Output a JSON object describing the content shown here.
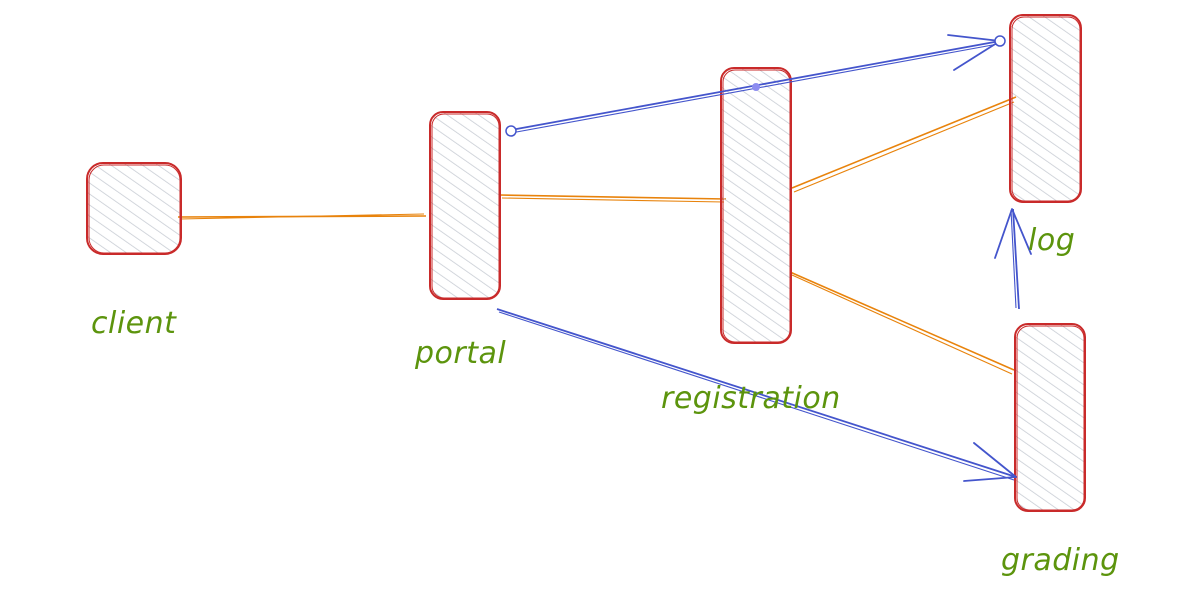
{
  "diagram": {
    "nodes": [
      {
        "id": "client",
        "label": "client"
      },
      {
        "id": "portal",
        "label": "portal"
      },
      {
        "id": "registration",
        "label": "registration"
      },
      {
        "id": "log",
        "label": "log"
      },
      {
        "id": "grading",
        "label": "grading"
      }
    ],
    "edges": [
      {
        "from": "client",
        "to": "portal",
        "kind": "line",
        "color": "#e8830c"
      },
      {
        "from": "portal",
        "to": "registration",
        "kind": "line",
        "color": "#e8830c"
      },
      {
        "from": "registration",
        "to": "log",
        "kind": "line",
        "color": "#e8830c"
      },
      {
        "from": "registration",
        "to": "grading",
        "kind": "line",
        "color": "#e8830c"
      },
      {
        "from": "portal",
        "to": "log",
        "kind": "arrow",
        "color": "#4455cc"
      },
      {
        "from": "portal",
        "to": "grading",
        "kind": "arrow",
        "color": "#4455cc"
      },
      {
        "from": "grading",
        "to": "log",
        "kind": "arrow",
        "color": "#4455cc"
      }
    ]
  },
  "colors": {
    "box_stroke": "#c92a2a",
    "box_hatch": "#c8ccd4",
    "label": "#5c940d",
    "sync_edge": "#e8830c",
    "async_edge": "#4455cc"
  }
}
